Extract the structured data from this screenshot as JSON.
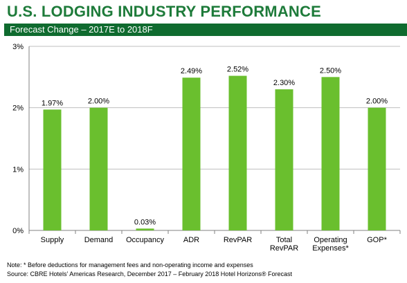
{
  "header": {
    "title": "U.S. LODGING INDUSTRY PERFORMANCE",
    "subtitle": "Forecast Change – 2017E to 2018F"
  },
  "footnotes": {
    "note": "Note: * Before deductions for management fees and non-operating income and expenses",
    "source": "Source: CBRE Hotels’ Americas Research, December 2017 – February 2018 Hotel Horizons® Forecast"
  },
  "colors": {
    "bar": "#6abf2e",
    "title": "#1e7b3a",
    "band": "#0f6b2f",
    "grid": "#bfbfbf"
  },
  "chart_data": {
    "type": "bar",
    "title": "U.S. LODGING INDUSTRY PERFORMANCE",
    "subtitle": "Forecast Change – 2017E to 2018F",
    "categories": [
      [
        "Supply"
      ],
      [
        "Demand"
      ],
      [
        "Occupancy"
      ],
      [
        "ADR"
      ],
      [
        "RevPAR"
      ],
      [
        "Total",
        "RevPAR"
      ],
      [
        "Operating",
        "Expenses*"
      ],
      [
        "GOP*"
      ]
    ],
    "values": [
      1.97,
      2.0,
      0.03,
      2.49,
      2.52,
      2.3,
      2.5,
      2.0
    ],
    "value_labels": [
      "1.97%",
      "2.00%",
      "0.03%",
      "2.49%",
      "2.52%",
      "2.30%",
      "2.50%",
      "2.00%"
    ],
    "yticks": [
      0,
      1,
      2,
      3
    ],
    "ytick_labels": [
      "0%",
      "1%",
      "2%",
      "3%"
    ],
    "ylim": [
      0,
      3
    ],
    "grid": true,
    "xlabel": "",
    "ylabel": ""
  }
}
